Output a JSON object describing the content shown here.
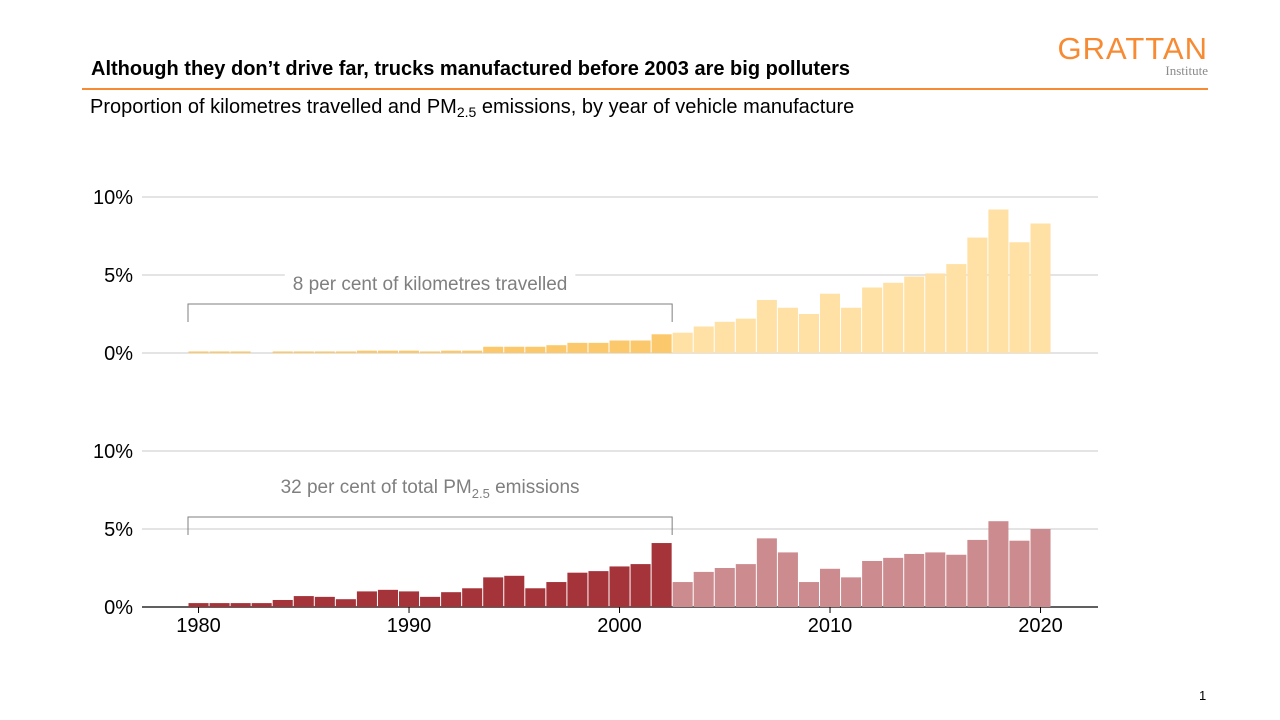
{
  "header": {
    "title": "Although they don’t drive far, trucks manufactured before 2003 are big polluters",
    "subtitle_prefix": "Proportion of kilometres travelled and PM",
    "subtitle_sub": "2.5",
    "subtitle_suffix": " emissions, by year of vehicle manufacture"
  },
  "logo": {
    "word": "GRATTAN",
    "sub": "Institute",
    "color": "#f68b33"
  },
  "page_number": "1",
  "chart_data": [
    {
      "type": "bar",
      "panel": "top",
      "title": "",
      "ylabel": "",
      "y_tick_labels": [
        "10%",
        "5%",
        "0%"
      ],
      "ylim": [
        0,
        10
      ],
      "x": [
        1980,
        1981,
        1982,
        1983,
        1984,
        1985,
        1986,
        1987,
        1988,
        1989,
        1990,
        1991,
        1992,
        1993,
        1994,
        1995,
        1996,
        1997,
        1998,
        1999,
        2000,
        2001,
        2002,
        2003,
        2004,
        2005,
        2006,
        2007,
        2008,
        2009,
        2010,
        2011,
        2012,
        2013,
        2014,
        2015,
        2016,
        2017,
        2018,
        2019,
        2020
      ],
      "values": [
        0.1,
        0.1,
        0.1,
        0.0,
        0.1,
        0.1,
        0.1,
        0.1,
        0.15,
        0.15,
        0.15,
        0.1,
        0.15,
        0.15,
        0.4,
        0.4,
        0.4,
        0.5,
        0.65,
        0.65,
        0.8,
        0.8,
        1.2,
        1.3,
        1.7,
        2.0,
        2.2,
        3.4,
        2.9,
        2.5,
        3.8,
        2.9,
        4.2,
        4.5,
        4.9,
        5.1,
        5.7,
        7.4,
        9.2,
        7.1,
        8.3
      ],
      "highlight_before": 2003,
      "colors": {
        "highlight": "#fbc96b",
        "rest": "#ffe1a6"
      },
      "annotation": {
        "text": "8 per cent of kilometres travelled",
        "from_year": 1980,
        "to_year": 2002
      }
    },
    {
      "type": "bar",
      "panel": "bottom",
      "title": "",
      "ylabel": "",
      "y_tick_labels": [
        "10%",
        "5%",
        "0%"
      ],
      "ylim": [
        0,
        10
      ],
      "x": [
        1980,
        1981,
        1982,
        1983,
        1984,
        1985,
        1986,
        1987,
        1988,
        1989,
        1990,
        1991,
        1992,
        1993,
        1994,
        1995,
        1996,
        1997,
        1998,
        1999,
        2000,
        2001,
        2002,
        2003,
        2004,
        2005,
        2006,
        2007,
        2008,
        2009,
        2010,
        2011,
        2012,
        2013,
        2014,
        2015,
        2016,
        2017,
        2018,
        2019,
        2020
      ],
      "values": [
        0.25,
        0.25,
        0.25,
        0.25,
        0.45,
        0.7,
        0.65,
        0.5,
        1.0,
        1.1,
        1.0,
        0.65,
        0.95,
        1.2,
        1.9,
        2.0,
        1.2,
        1.6,
        2.2,
        2.3,
        2.6,
        2.75,
        4.1,
        1.6,
        2.25,
        2.5,
        2.75,
        4.4,
        3.5,
        1.6,
        2.45,
        1.9,
        2.95,
        3.15,
        3.4,
        3.5,
        3.35,
        4.3,
        5.5,
        4.25,
        5.0
      ],
      "highlight_before": 2003,
      "colors": {
        "highlight": "#a4343a",
        "rest": "#cc8c8f"
      },
      "annotation": {
        "text_prefix": "32 per cent of total PM",
        "text_sub": "2.5",
        "text_suffix": " emissions",
        "from_year": 1980,
        "to_year": 2002
      }
    }
  ],
  "x_axis": {
    "tick_labels": [
      "1980",
      "1990",
      "2000",
      "2010",
      "2020"
    ],
    "tick_years": [
      1980,
      1990,
      2000,
      2010,
      2020
    ]
  },
  "style": {
    "grid_color": "#c8c8c8",
    "axis_color": "#000000",
    "bracket_color": "#7f7f7f"
  }
}
